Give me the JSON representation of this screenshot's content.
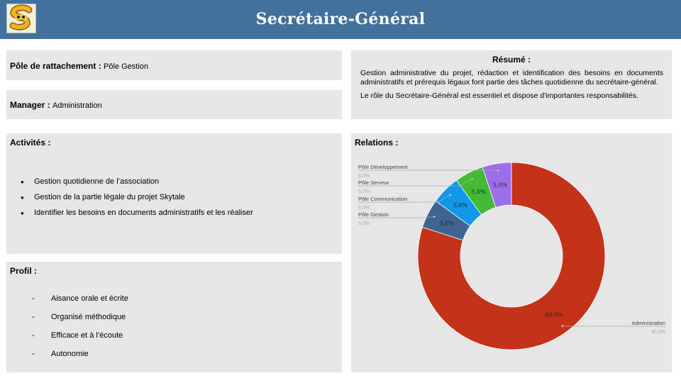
{
  "header": {
    "title": "Secrétaire-Général",
    "logo_icon": "s-mascot-logo-icon",
    "background_color": "#41719c"
  },
  "pole": {
    "label": "Pôle de rattachement :",
    "value": "Pôle Gestion"
  },
  "manager": {
    "label": "Manager :",
    "value": "Administration"
  },
  "resume": {
    "title": "Résumé :",
    "paragraphs": [
      "Gestion administrative du projet, rédaction et identification des besoins en documents administratifs et prérequis légaux font partie des tâches quotidienne du secrétaire-général.",
      "Le rôle du Secrétaire-Général est essentiel et dispose d'importantes responsabilités."
    ]
  },
  "activites": {
    "title": "Activités :",
    "items": [
      "Gestion quotidienne de l’association",
      "Gestion de la partie légale du projet Skytale",
      "Identifier les besoins en documents administratifs et les réaliser"
    ]
  },
  "profil": {
    "title": "Profil :",
    "items": [
      "Aisance orale et écrite",
      "Organisé méthodique",
      "Efficace et à l’écoute",
      "Autonomie"
    ]
  },
  "relations": {
    "title": "Relations :",
    "chart_data": {
      "type": "pie",
      "donut": true,
      "categories": [
        "Administration",
        "Pôle Gestion",
        "Pôle Communication",
        "Pôle Serveur",
        "Pôle Développement"
      ],
      "values": [
        80.0,
        5.0,
        5.0,
        5.0,
        5.0
      ],
      "slice_labels": [
        "80,0%",
        "5,0%",
        "5,0%",
        "5,0%",
        "5,0%"
      ],
      "colors": [
        "#c5321a",
        "#3e6592",
        "#1098e8",
        "#44b935",
        "#9a6fe8"
      ]
    }
  }
}
